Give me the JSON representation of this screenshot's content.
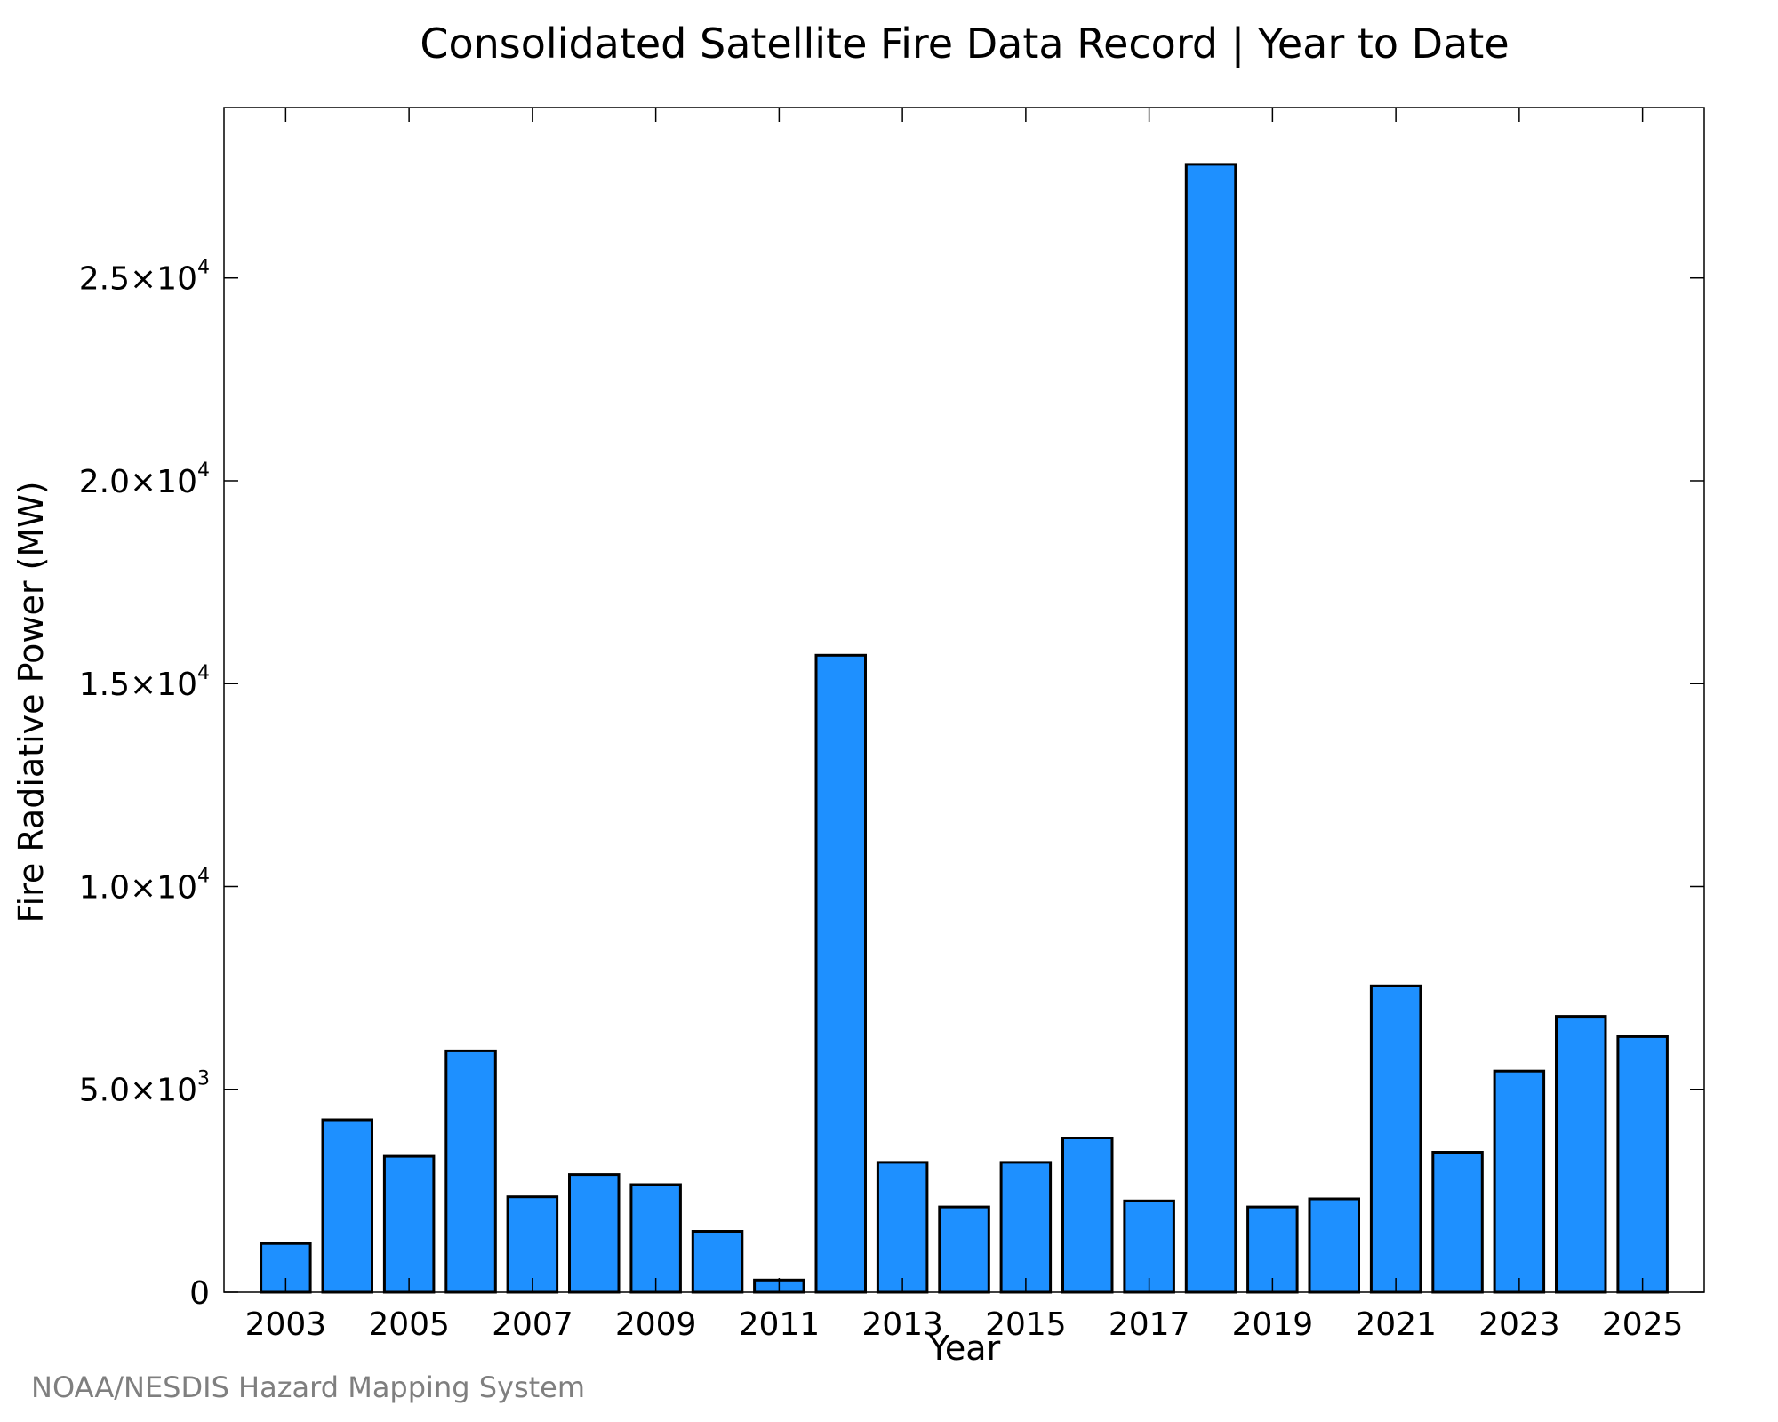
{
  "chart_data": {
    "type": "bar",
    "title": "Consolidated Satellite Fire Data Record | Year to Date",
    "xlabel": "Year",
    "ylabel": "Fire Radiative Power (MW)",
    "categories": [
      "2003",
      "2004",
      "2005",
      "2006",
      "2007",
      "2008",
      "2009",
      "2010",
      "2011",
      "2012",
      "2013",
      "2014",
      "2015",
      "2016",
      "2017",
      "2018",
      "2019",
      "2020",
      "2021",
      "2022",
      "2023",
      "2024",
      "2025"
    ],
    "values": [
      1200,
      4250,
      3350,
      5950,
      2350,
      2900,
      2650,
      1500,
      300,
      15700,
      3200,
      2100,
      3200,
      3800,
      2250,
      27800,
      2100,
      2300,
      7550,
      3450,
      5450,
      6800,
      6300
    ],
    "x_ticks": [
      "2003",
      "2005",
      "2007",
      "2009",
      "2011",
      "2013",
      "2015",
      "2017",
      "2019",
      "2021",
      "2023",
      "2025"
    ],
    "y_ticks": [
      {
        "value": 0,
        "mantissa": "0",
        "exponent": ""
      },
      {
        "value": 5000,
        "mantissa": "5.0×10",
        "exponent": "3"
      },
      {
        "value": 10000,
        "mantissa": "1.0×10",
        "exponent": "4"
      },
      {
        "value": 15000,
        "mantissa": "1.5×10",
        "exponent": "4"
      },
      {
        "value": 20000,
        "mantissa": "2.0×10",
        "exponent": "4"
      },
      {
        "value": 25000,
        "mantissa": "2.5×10",
        "exponent": "4"
      }
    ],
    "ylim": [
      0,
      29200
    ],
    "xlim": [
      2002.0,
      2026.0
    ],
    "bar_color": "#1e90ff",
    "edge_color": "#000000",
    "grid": false,
    "legend": "none"
  },
  "footer": {
    "credit": "NOAA/NESDIS Hazard Mapping System"
  }
}
